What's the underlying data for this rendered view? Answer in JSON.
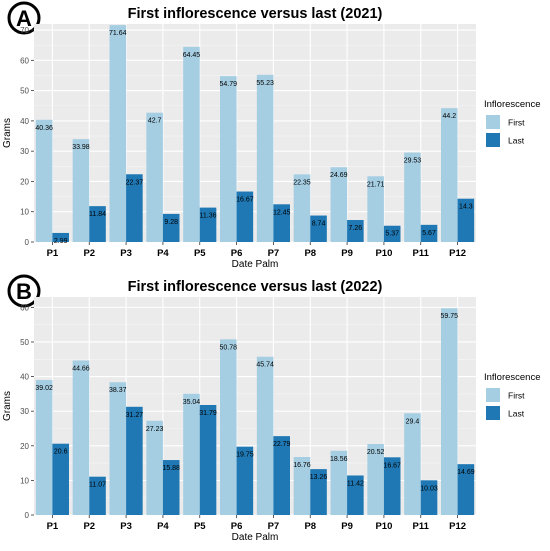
{
  "chart_data": [
    {
      "type": "bar",
      "panel_label": "A",
      "title": "First inflorescence versus last (2021)",
      "xlabel": "Date Palm",
      "ylabel": "Grams",
      "categories": [
        "P1",
        "P2",
        "P3",
        "P4",
        "P5",
        "P6",
        "P7",
        "P8",
        "P9",
        "P10",
        "P11",
        "P12"
      ],
      "series": [
        {
          "name": "First",
          "color": "#a6cee3",
          "values": [
            40.36,
            33.98,
            71.64,
            42.7,
            64.45,
            54.79,
            55.23,
            22.35,
            24.69,
            21.71,
            29.53,
            44.2
          ],
          "labels": [
            "40.36",
            "33.98",
            "71.64",
            "42.7",
            "64.45",
            "54.79",
            "55.23",
            "22.35",
            "24.69",
            "21.71",
            "29.53",
            "44.2"
          ]
        },
        {
          "name": "Last",
          "color": "#1f78b4",
          "values": [
            2.99,
            11.84,
            22.37,
            9.28,
            11.36,
            16.67,
            12.45,
            8.74,
            7.26,
            5.37,
            5.67,
            14.3
          ],
          "labels": [
            "2.99",
            "11.84",
            "22.37",
            "9.28",
            "11.36",
            "16.67",
            "12.45",
            "8.74",
            "7.26",
            "5.37",
            "5.67",
            "14.3"
          ]
        }
      ],
      "ylim": [
        0,
        72
      ],
      "yticks": [
        0,
        10,
        20,
        30,
        40,
        50,
        60,
        70
      ],
      "legend_title": "Inflorescence",
      "legend_position": "right",
      "grid": true,
      "panel_background": "#ebebeb"
    },
    {
      "type": "bar",
      "panel_label": "B",
      "title": "First inflorescence versus last (2022)",
      "xlabel": "Date Palm",
      "ylabel": "Grams",
      "categories": [
        "P1",
        "P2",
        "P3",
        "P4",
        "P5",
        "P6",
        "P7",
        "P8",
        "P9",
        "P10",
        "P11",
        "P12"
      ],
      "series": [
        {
          "name": "First",
          "color": "#a6cee3",
          "values": [
            39.02,
            44.66,
            38.37,
            27.23,
            35.04,
            50.78,
            45.74,
            16.76,
            18.56,
            20.52,
            29.4,
            59.75
          ],
          "labels": [
            "39.02",
            "44.66",
            "38.37",
            "27.23",
            "35.04",
            "50.78",
            "45.74",
            "16.76",
            "18.56",
            "20.52",
            "29.4",
            "59.75"
          ]
        },
        {
          "name": "Last",
          "color": "#1f78b4",
          "values": [
            20.6,
            11.07,
            31.27,
            15.88,
            31.79,
            19.75,
            22.79,
            13.26,
            11.42,
            16.67,
            10.03,
            14.69
          ],
          "labels": [
            "20.6",
            "11.07",
            "31.27",
            "15.88",
            "31.79",
            "19.75",
            "22.79",
            "13.26",
            "11.42",
            "16.67",
            "10.03",
            "14.69"
          ]
        }
      ],
      "ylim": [
        0,
        63
      ],
      "yticks": [
        0,
        10,
        20,
        30,
        40,
        50,
        60
      ],
      "legend_title": "Inflorescence",
      "legend_position": "right",
      "grid": true,
      "panel_background": "#ebebeb"
    }
  ]
}
